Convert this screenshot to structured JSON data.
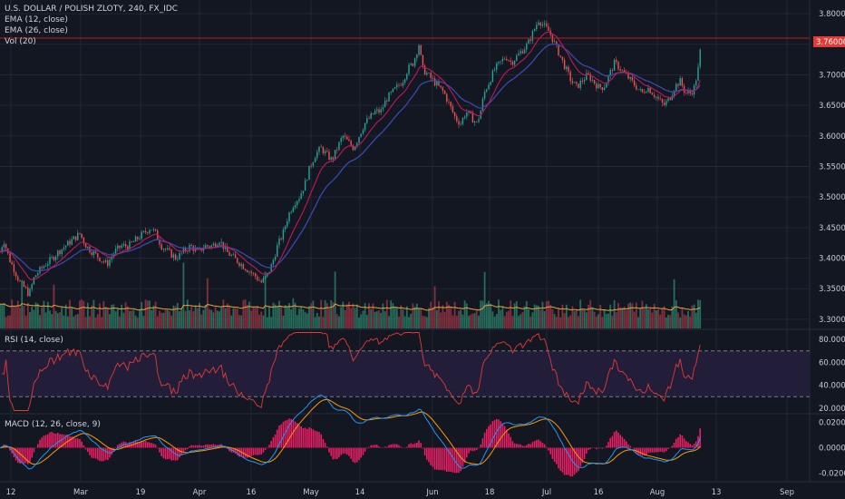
{
  "legend": {
    "main_title": "U.S. DOLLAR / POLISH ZLOTY, 240, FX_IDC",
    "ema12": "EMA (12, close)",
    "ema26": "EMA (26, close)",
    "vol": "Vol (20)",
    "rsi": "RSI (14, close)",
    "macd": "MACD (12, 26, close, 9)"
  },
  "colors": {
    "background": "#131722",
    "grid": "#232734",
    "axis_text": "#c9ccd3",
    "up": "#26a69a",
    "down": "#ef5350",
    "ema12": "#c2185b",
    "ema26": "#3949ab",
    "vol_up": "#2e8b6f",
    "vol_down": "#a83a48",
    "vol_ma": "#e6a23c",
    "rsi_line": "#e53935",
    "rsi_band": "#221e3a",
    "macd_line": "#2196f3",
    "signal_line": "#ff9800",
    "hist_pos": "#e91e63",
    "hist_neg": "#e91e63",
    "price_line": "#b71c1c",
    "price_tag": "#e53935"
  },
  "chart_data": {
    "type": "candlestick",
    "symbol": "U.S. DOLLAR / POLISH ZLOTY, 240, FX_IDC",
    "x_tick_labels": [
      "12",
      "Mar",
      "19",
      "Apr",
      "16",
      "May",
      "14",
      "Jun",
      "18",
      "Jul",
      "16",
      "Aug",
      "13",
      "Sep"
    ],
    "price_axis": {
      "ticks": [
        "3.80000",
        "3.75000",
        "3.70000",
        "3.65000",
        "3.60000",
        "3.55000",
        "3.50000",
        "3.45000",
        "3.40000",
        "3.35000",
        "3.30000"
      ],
      "ylim": [
        3.285,
        3.815
      ]
    },
    "last_price": "3.76000",
    "close_path": [
      [
        0,
        3.41
      ],
      [
        4,
        3.43
      ],
      [
        10,
        3.4
      ],
      [
        16,
        3.38
      ],
      [
        22,
        3.36
      ],
      [
        28,
        3.35
      ],
      [
        32,
        3.34
      ],
      [
        38,
        3.37
      ],
      [
        44,
        3.38
      ],
      [
        50,
        3.39
      ],
      [
        58,
        3.4
      ],
      [
        64,
        3.41
      ],
      [
        72,
        3.42
      ],
      [
        80,
        3.43
      ],
      [
        88,
        3.44
      ],
      [
        95,
        3.42
      ],
      [
        102,
        3.41
      ],
      [
        110,
        3.4
      ],
      [
        118,
        3.39
      ],
      [
        126,
        3.41
      ],
      [
        134,
        3.42
      ],
      [
        142,
        3.42
      ],
      [
        150,
        3.43
      ],
      [
        158,
        3.44
      ],
      [
        166,
        3.45
      ],
      [
        172,
        3.44
      ],
      [
        178,
        3.42
      ],
      [
        186,
        3.41
      ],
      [
        194,
        3.4
      ],
      [
        202,
        3.41
      ],
      [
        210,
        3.42
      ],
      [
        218,
        3.41
      ],
      [
        226,
        3.42
      ],
      [
        234,
        3.42
      ],
      [
        242,
        3.43
      ],
      [
        250,
        3.41
      ],
      [
        258,
        3.4
      ],
      [
        266,
        3.39
      ],
      [
        274,
        3.38
      ],
      [
        282,
        3.37
      ],
      [
        288,
        3.36
      ],
      [
        294,
        3.37
      ],
      [
        300,
        3.39
      ],
      [
        306,
        3.42
      ],
      [
        312,
        3.44
      ],
      [
        318,
        3.47
      ],
      [
        324,
        3.49
      ],
      [
        330,
        3.5
      ],
      [
        336,
        3.52
      ],
      [
        342,
        3.55
      ],
      [
        348,
        3.57
      ],
      [
        354,
        3.58
      ],
      [
        360,
        3.57
      ],
      [
        366,
        3.56
      ],
      [
        372,
        3.58
      ],
      [
        378,
        3.6
      ],
      [
        384,
        3.59
      ],
      [
        390,
        3.58
      ],
      [
        396,
        3.6
      ],
      [
        402,
        3.62
      ],
      [
        408,
        3.63
      ],
      [
        414,
        3.64
      ],
      [
        420,
        3.64
      ],
      [
        426,
        3.66
      ],
      [
        432,
        3.67
      ],
      [
        438,
        3.68
      ],
      [
        444,
        3.69
      ],
      [
        450,
        3.71
      ],
      [
        456,
        3.72
      ],
      [
        462,
        3.75
      ],
      [
        466,
        3.71
      ],
      [
        472,
        3.7
      ],
      [
        478,
        3.69
      ],
      [
        484,
        3.68
      ],
      [
        490,
        3.67
      ],
      [
        496,
        3.65
      ],
      [
        502,
        3.63
      ],
      [
        508,
        3.62
      ],
      [
        514,
        3.64
      ],
      [
        520,
        3.63
      ],
      [
        526,
        3.62
      ],
      [
        530,
        3.64
      ],
      [
        534,
        3.67
      ],
      [
        540,
        3.69
      ],
      [
        546,
        3.71
      ],
      [
        552,
        3.72
      ],
      [
        558,
        3.73
      ],
      [
        564,
        3.72
      ],
      [
        570,
        3.73
      ],
      [
        576,
        3.74
      ],
      [
        582,
        3.75
      ],
      [
        588,
        3.77
      ],
      [
        594,
        3.79
      ],
      [
        600,
        3.78
      ],
      [
        606,
        3.77
      ],
      [
        612,
        3.75
      ],
      [
        618,
        3.73
      ],
      [
        624,
        3.71
      ],
      [
        630,
        3.69
      ],
      [
        636,
        3.68
      ],
      [
        642,
        3.69
      ],
      [
        648,
        3.7
      ],
      [
        654,
        3.69
      ],
      [
        660,
        3.68
      ],
      [
        666,
        3.68
      ],
      [
        672,
        3.7
      ],
      [
        678,
        3.72
      ],
      [
        684,
        3.71
      ],
      [
        690,
        3.7
      ],
      [
        696,
        3.69
      ],
      [
        702,
        3.68
      ],
      [
        708,
        3.67
      ],
      [
        714,
        3.68
      ],
      [
        720,
        3.67
      ],
      [
        726,
        3.66
      ],
      [
        732,
        3.65
      ],
      [
        738,
        3.66
      ],
      [
        744,
        3.68
      ],
      [
        750,
        3.69
      ],
      [
        756,
        3.67
      ],
      [
        762,
        3.67
      ],
      [
        766,
        3.68
      ],
      [
        770,
        3.71
      ],
      [
        774,
        3.76
      ]
    ],
    "volume_pane": {
      "series": [
        "Volume",
        "Vol MA (20)"
      ]
    },
    "rsi_pane": {
      "ticks": [
        "80.0000",
        "60.0000",
        "40.0000",
        "20.0000"
      ],
      "ylim": [
        16,
        88
      ],
      "overbought": 70,
      "oversold": 30
    },
    "macd_pane": {
      "ticks": [
        "0.0200",
        "0.0000",
        "-0.0200"
      ],
      "ylim": [
        -0.026,
        0.026
      ]
    }
  }
}
